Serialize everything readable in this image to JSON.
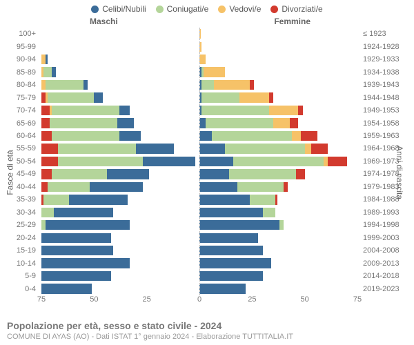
{
  "legend": {
    "items": [
      {
        "label": "Celibi/Nubili",
        "color": "#3b6c99"
      },
      {
        "label": "Coniugati/e",
        "color": "#b4d59a"
      },
      {
        "label": "Vedovi/e",
        "color": "#f6c268"
      },
      {
        "label": "Divorziati/e",
        "color": "#d23a2e"
      }
    ]
  },
  "headers": {
    "left": "Maschi",
    "right": "Femmine"
  },
  "axes": {
    "y_left_title": "Fasce di età",
    "y_right_title": "Anni di nascita",
    "x_max": 75,
    "x_ticks": [
      75,
      50,
      25,
      0,
      25,
      50,
      75
    ]
  },
  "rows": [
    {
      "age": "100+",
      "birth": "≤ 1923",
      "m": [
        0,
        0,
        0,
        0
      ],
      "f": [
        0,
        0,
        0.5,
        0
      ]
    },
    {
      "age": "95-99",
      "birth": "1924-1928",
      "m": [
        0,
        0,
        0,
        0
      ],
      "f": [
        0,
        0,
        1,
        0
      ]
    },
    {
      "age": "90-94",
      "birth": "1929-1933",
      "m": [
        1,
        0,
        2,
        0
      ],
      "f": [
        0,
        0,
        3,
        0
      ]
    },
    {
      "age": "85-89",
      "birth": "1934-1938",
      "m": [
        2,
        4,
        1,
        0
      ],
      "f": [
        1,
        1,
        10,
        0
      ]
    },
    {
      "age": "80-84",
      "birth": "1939-1943",
      "m": [
        2,
        18,
        2,
        0
      ],
      "f": [
        1,
        6,
        17,
        2
      ]
    },
    {
      "age": "75-79",
      "birth": "1944-1948",
      "m": [
        4,
        22,
        1,
        2
      ],
      "f": [
        1,
        18,
        14,
        2
      ]
    },
    {
      "age": "70-74",
      "birth": "1949-1953",
      "m": [
        5,
        32,
        1,
        4
      ],
      "f": [
        1,
        32,
        14,
        2
      ]
    },
    {
      "age": "65-69",
      "birth": "1954-1958",
      "m": [
        8,
        32,
        0,
        4
      ],
      "f": [
        3,
        32,
        8,
        4
      ]
    },
    {
      "age": "60-64",
      "birth": "1959-1963",
      "m": [
        10,
        32,
        0,
        5
      ],
      "f": [
        6,
        38,
        4,
        8
      ]
    },
    {
      "age": "55-59",
      "birth": "1964-1968",
      "m": [
        18,
        37,
        0,
        8
      ],
      "f": [
        12,
        38,
        3,
        8
      ]
    },
    {
      "age": "50-54",
      "birth": "1969-1973",
      "m": [
        25,
        40,
        0,
        8
      ],
      "f": [
        16,
        43,
        2,
        9
      ]
    },
    {
      "age": "45-49",
      "birth": "1974-1978",
      "m": [
        20,
        26,
        0,
        5
      ],
      "f": [
        14,
        32,
        0,
        4
      ]
    },
    {
      "age": "40-44",
      "birth": "1979-1983",
      "m": [
        25,
        20,
        0,
        3
      ],
      "f": [
        18,
        22,
        0,
        2
      ]
    },
    {
      "age": "35-39",
      "birth": "1984-1988",
      "m": [
        28,
        12,
        0,
        1
      ],
      "f": [
        24,
        12,
        0,
        1
      ]
    },
    {
      "age": "30-34",
      "birth": "1989-1993",
      "m": [
        28,
        6,
        0,
        0
      ],
      "f": [
        30,
        6,
        0,
        0
      ]
    },
    {
      "age": "25-29",
      "birth": "1994-1998",
      "m": [
        40,
        2,
        0,
        0
      ],
      "f": [
        38,
        2,
        0,
        0
      ]
    },
    {
      "age": "20-24",
      "birth": "1999-2003",
      "m": [
        33,
        0,
        0,
        0
      ],
      "f": [
        28,
        0,
        0,
        0
      ]
    },
    {
      "age": "15-19",
      "birth": "2004-2008",
      "m": [
        34,
        0,
        0,
        0
      ],
      "f": [
        30,
        0,
        0,
        0
      ]
    },
    {
      "age": "10-14",
      "birth": "2009-2013",
      "m": [
        42,
        0,
        0,
        0
      ],
      "f": [
        34,
        0,
        0,
        0
      ]
    },
    {
      "age": "5-9",
      "birth": "2014-2018",
      "m": [
        33,
        0,
        0,
        0
      ],
      "f": [
        30,
        0,
        0,
        0
      ]
    },
    {
      "age": "0-4",
      "birth": "2019-2023",
      "m": [
        24,
        0,
        0,
        0
      ],
      "f": [
        22,
        0,
        0,
        0
      ]
    }
  ],
  "footer": {
    "title": "Popolazione per età, sesso e stato civile - 2024",
    "subtitle": "COMUNE DI AYAS (AO) - Dati ISTAT 1° gennaio 2024 - Elaborazione TUTTITALIA.IT"
  },
  "style": {
    "row_gap_color": "#ffffff",
    "label_color": "#777",
    "plot_bg": "#ffffff"
  }
}
